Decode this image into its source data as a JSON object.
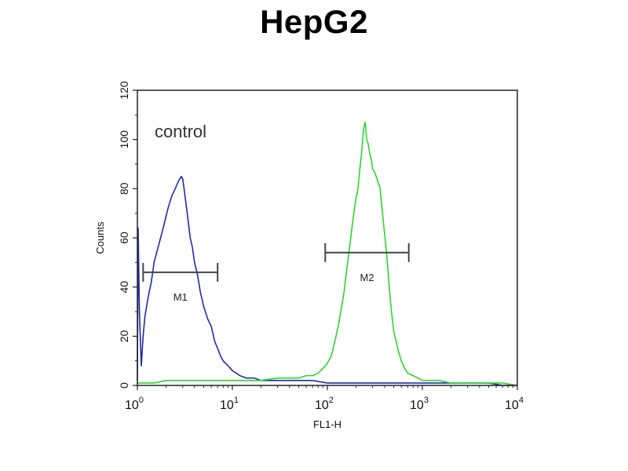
{
  "title": "HepG2",
  "chart_data": {
    "type": "line",
    "title": "HepG2",
    "xlabel": "FL1-H",
    "ylabel": "Counts",
    "x_scale": "log",
    "xlim": [
      1,
      10000
    ],
    "ylim": [
      0,
      120
    ],
    "x_ticks": [
      {
        "value": 1,
        "base": "10",
        "exp": "0"
      },
      {
        "value": 10,
        "base": "10",
        "exp": "1"
      },
      {
        "value": 100,
        "base": "10",
        "exp": "2"
      },
      {
        "value": 1000,
        "base": "10",
        "exp": "3"
      },
      {
        "value": 10000,
        "base": "10",
        "exp": "4"
      }
    ],
    "y_ticks": [
      0,
      20,
      40,
      60,
      80,
      100,
      120
    ],
    "annotation": "control",
    "colors": {
      "control": "#1f2aa8",
      "sample": "#2bd62b",
      "marker": "#444444"
    },
    "series": [
      {
        "key": "control",
        "x": [
          1.0,
          1.02,
          1.05,
          1.1,
          1.15,
          1.2,
          1.3,
          1.4,
          1.5,
          1.7,
          1.9,
          2.1,
          2.3,
          2.5,
          2.7,
          2.9,
          3.0,
          3.1,
          3.2,
          3.4,
          3.6,
          3.8,
          4.0,
          4.3,
          4.6,
          5.0,
          5.5,
          6.0,
          6.5,
          7.0,
          7.5,
          8.0,
          9.0,
          10.0,
          11.0,
          12.0,
          14.0,
          17.0,
          20.0,
          25.0,
          30.0,
          40.0,
          50.0,
          70.0,
          100.0,
          150.0,
          200.0,
          300.0,
          500.0,
          700.0,
          1000.0,
          2000.0,
          3000.0,
          5000.0,
          7000.0,
          10000.0
        ],
        "y": [
          2,
          64,
          30,
          8,
          20,
          28,
          36,
          42,
          50,
          58,
          65,
          72,
          77,
          80,
          83,
          85,
          84,
          80,
          76,
          68,
          60,
          56,
          50,
          45,
          38,
          32,
          27,
          24,
          18,
          15,
          12,
          10,
          8,
          6,
          5,
          4,
          3,
          3,
          2,
          2,
          2,
          2,
          2,
          2,
          1,
          1,
          1,
          1,
          1,
          1,
          1,
          1,
          1,
          1,
          0,
          0
        ]
      },
      {
        "key": "sample",
        "x": [
          1.0,
          1.5,
          2,
          3,
          5,
          10,
          20,
          30,
          40,
          50,
          60,
          70,
          80,
          90,
          100,
          110,
          120,
          130,
          140,
          150,
          160,
          170,
          180,
          190,
          200,
          210,
          220,
          230,
          240,
          250,
          260,
          270,
          280,
          290,
          300,
          320,
          340,
          360,
          380,
          400,
          420,
          440,
          460,
          480,
          500,
          550,
          600,
          650,
          700,
          800,
          900,
          1000,
          1200,
          1500,
          2000,
          3000,
          5000,
          7000,
          10000
        ],
        "y": [
          1,
          1,
          2,
          2,
          2,
          2,
          2,
          3,
          3,
          3,
          4,
          4,
          5,
          7,
          9,
          12,
          18,
          24,
          31,
          38,
          47,
          55,
          63,
          70,
          76,
          80,
          88,
          95,
          104,
          107,
          100,
          98,
          94,
          92,
          88,
          86,
          83,
          80,
          70,
          62,
          54,
          44,
          35,
          28,
          22,
          15,
          10,
          7,
          5,
          4,
          3,
          2,
          2,
          2,
          1,
          1,
          1,
          1,
          0
        ]
      }
    ],
    "markers": [
      {
        "label": "M1",
        "x_start": 1.15,
        "x_end": 7.0,
        "y": 46
      },
      {
        "label": "M2",
        "x_start": 95.0,
        "x_end": 720.0,
        "y": 54
      }
    ]
  }
}
